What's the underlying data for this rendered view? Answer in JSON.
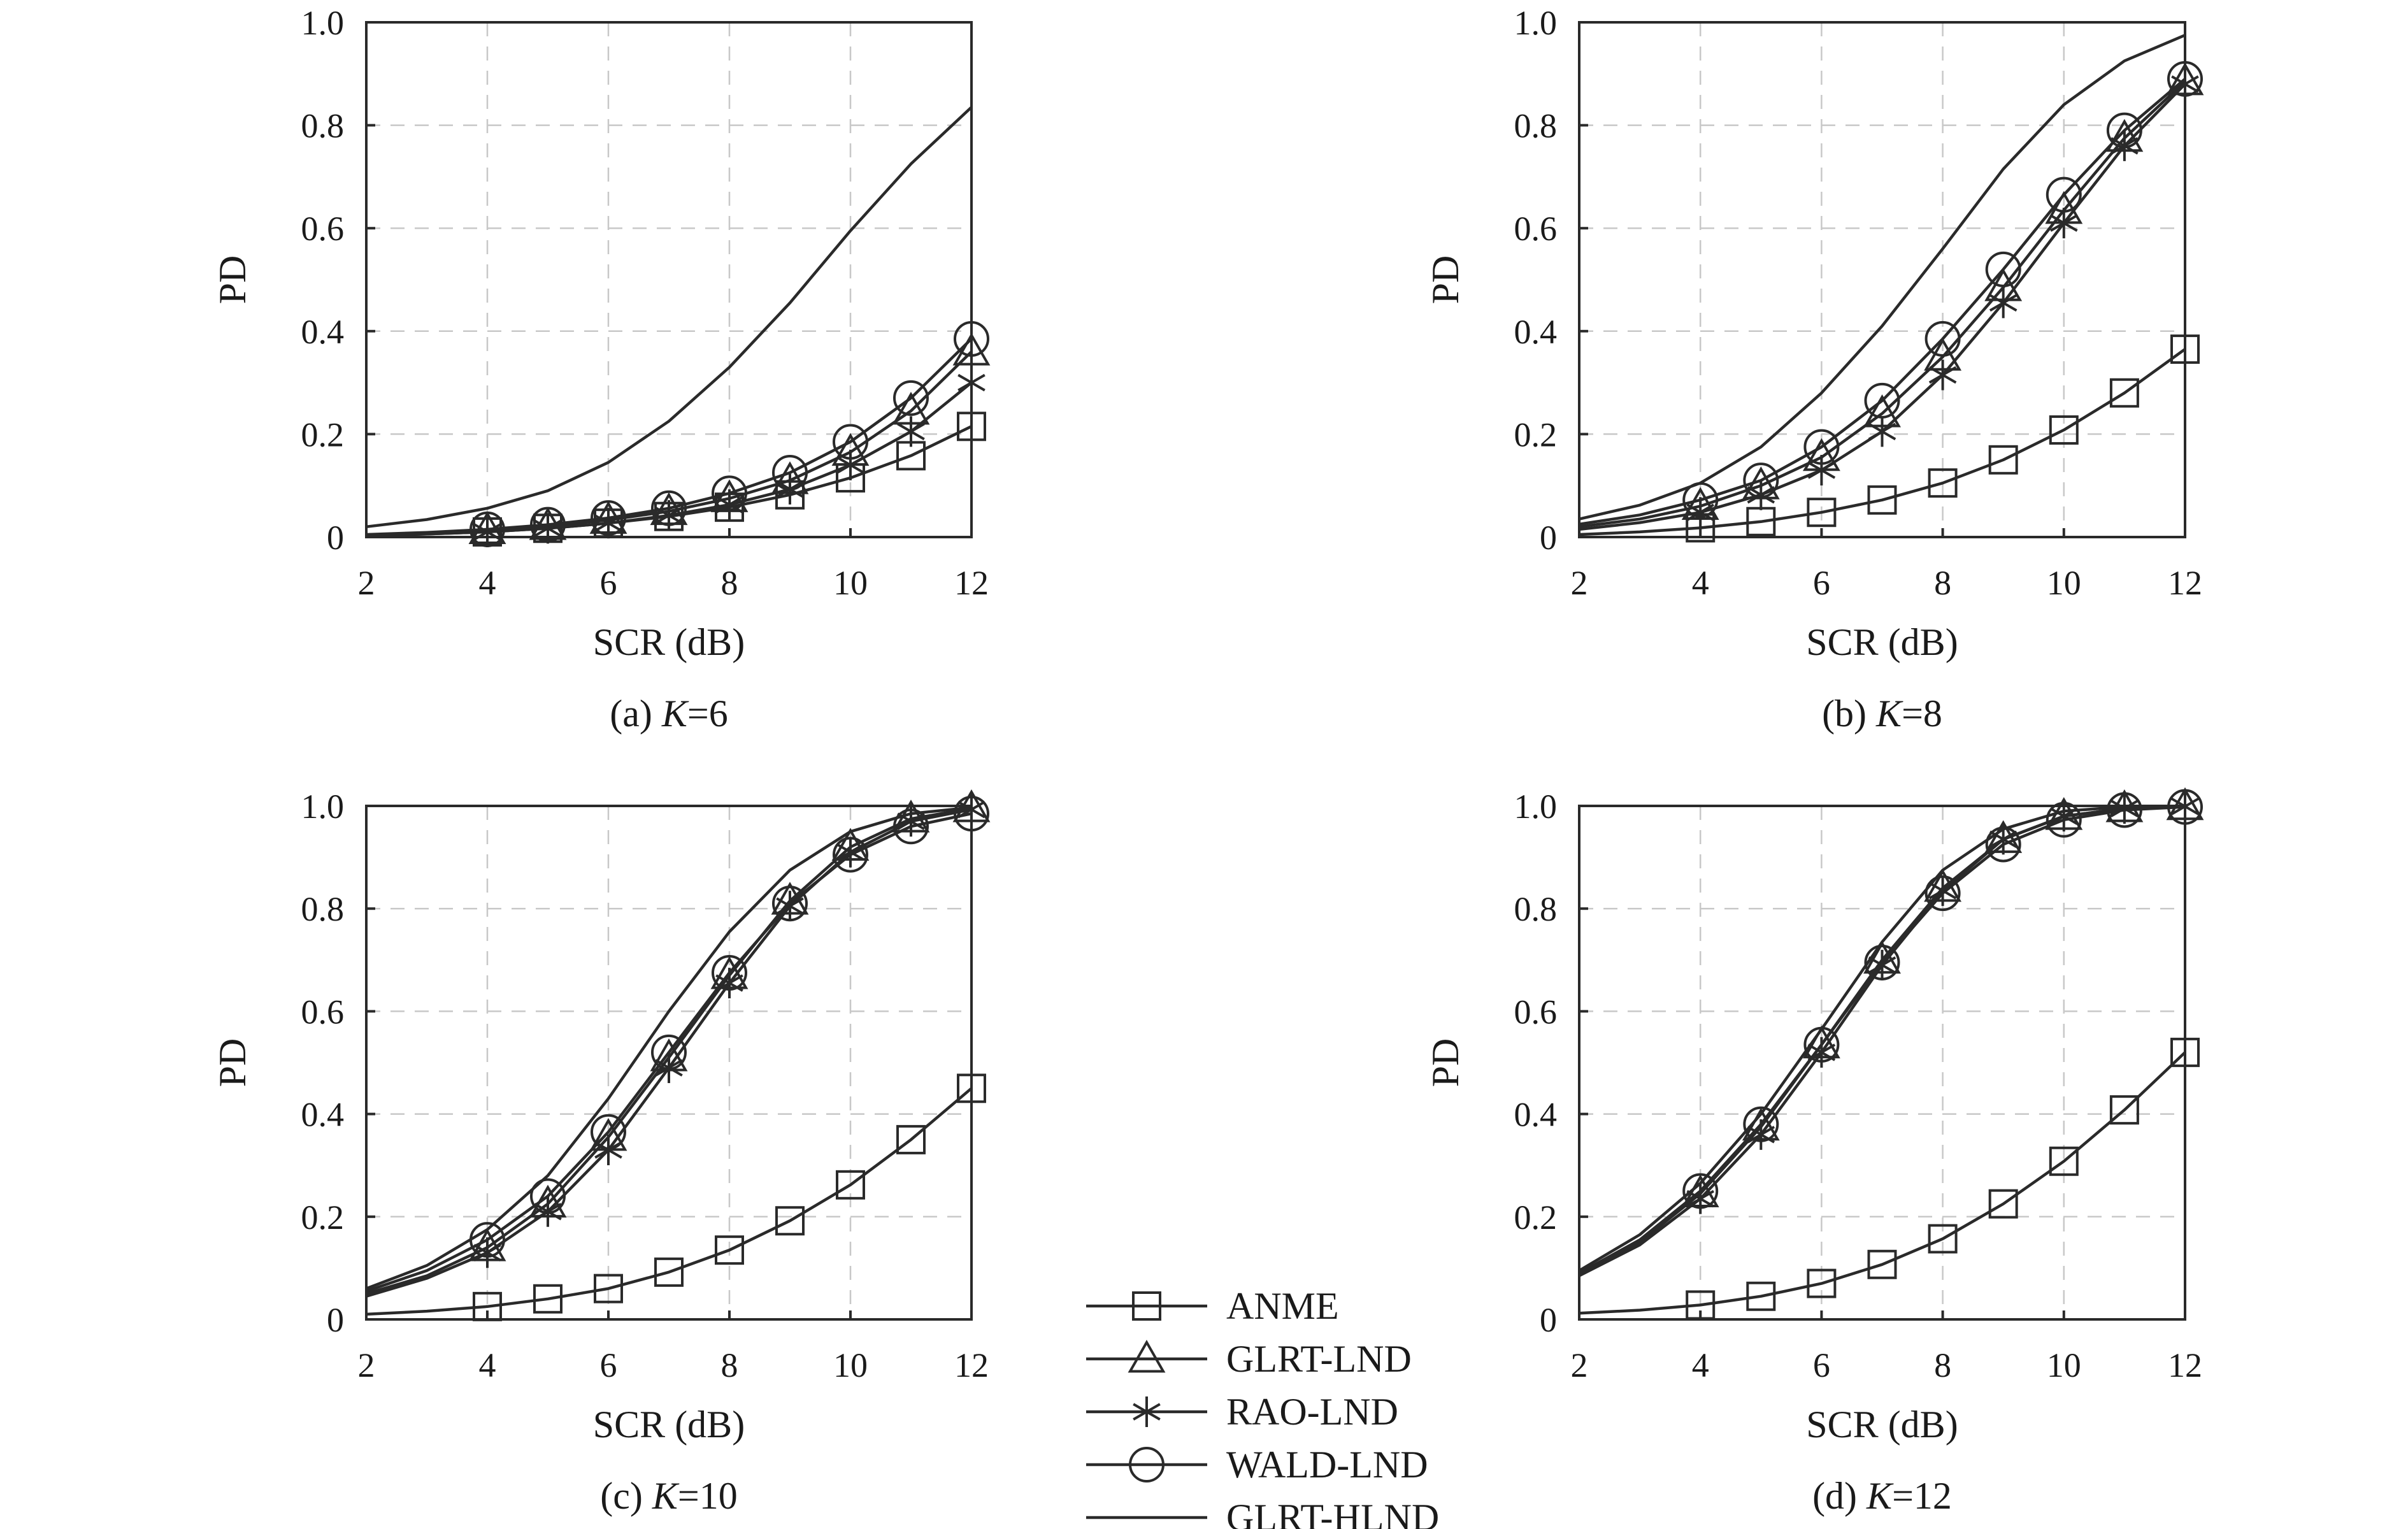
{
  "legend": {
    "entries": [
      {
        "label": "ANME",
        "marker": "square"
      },
      {
        "label": "GLRT-LND",
        "marker": "triangle"
      },
      {
        "label": "RAO-LND",
        "marker": "asterisk"
      },
      {
        "label": "WALD-LND",
        "marker": "circle"
      },
      {
        "label": "GLRT-HLND",
        "marker": "none"
      }
    ]
  },
  "chart_data": [
    {
      "type": "line",
      "caption_prefix": "(a) ",
      "caption_var": "K",
      "caption_value": "=6",
      "xlabel": "SCR (dB)",
      "ylabel": "PD",
      "xlim": [
        2,
        12
      ],
      "ylim": [
        0,
        1.0
      ],
      "xticks": [
        "2",
        "4",
        "6",
        "8",
        "10",
        "12"
      ],
      "yticks": [
        "0",
        "0.2",
        "0.4",
        "0.6",
        "0.8",
        "1.0"
      ],
      "grid": true,
      "x": [
        2,
        3,
        4,
        5,
        6,
        7,
        8,
        9,
        10,
        11,
        12
      ],
      "series": [
        {
          "name": "ANME",
          "marker": "square",
          "values": [
            0.003,
            0.006,
            0.01,
            0.017,
            0.027,
            0.04,
            0.058,
            0.082,
            0.115,
            0.158,
            0.215
          ]
        },
        {
          "name": "GLRT-LND",
          "marker": "triangle",
          "values": [
            0.004,
            0.008,
            0.013,
            0.021,
            0.033,
            0.05,
            0.075,
            0.11,
            0.165,
            0.245,
            0.36
          ]
        },
        {
          "name": "RAO-LND",
          "marker": "asterisk",
          "values": [
            0.003,
            0.006,
            0.01,
            0.017,
            0.027,
            0.042,
            0.063,
            0.093,
            0.14,
            0.205,
            0.3
          ]
        },
        {
          "name": "WALD-LND",
          "marker": "circle",
          "values": [
            0.005,
            0.009,
            0.015,
            0.024,
            0.037,
            0.056,
            0.085,
            0.125,
            0.185,
            0.27,
            0.385
          ]
        },
        {
          "name": "GLRT-HLND",
          "marker": "none",
          "values": [
            0.02,
            0.034,
            0.056,
            0.09,
            0.145,
            0.225,
            0.33,
            0.455,
            0.595,
            0.725,
            0.835
          ]
        }
      ]
    },
    {
      "type": "line",
      "caption_prefix": "(b) ",
      "caption_var": "K",
      "caption_value": "=8",
      "xlabel": "SCR (dB)",
      "ylabel": "PD",
      "xlim": [
        2,
        12
      ],
      "ylim": [
        0,
        1.0
      ],
      "xticks": [
        "2",
        "4",
        "6",
        "8",
        "10",
        "12"
      ],
      "yticks": [
        "0",
        "0.2",
        "0.4",
        "0.6",
        "0.8",
        "1.0"
      ],
      "grid": true,
      "x": [
        2,
        3,
        4,
        5,
        6,
        7,
        8,
        9,
        10,
        11,
        12
      ],
      "series": [
        {
          "name": "ANME",
          "marker": "square",
          "values": [
            0.005,
            0.01,
            0.018,
            0.03,
            0.048,
            0.072,
            0.105,
            0.15,
            0.208,
            0.28,
            0.365
          ]
        },
        {
          "name": "GLRT-LND",
          "marker": "triangle",
          "values": [
            0.02,
            0.035,
            0.06,
            0.1,
            0.155,
            0.24,
            0.35,
            0.485,
            0.635,
            0.775,
            0.885
          ]
        },
        {
          "name": "RAO-LND",
          "marker": "asterisk",
          "values": [
            0.015,
            0.028,
            0.048,
            0.082,
            0.13,
            0.205,
            0.315,
            0.455,
            0.61,
            0.76,
            0.88
          ]
        },
        {
          "name": "WALD-LND",
          "marker": "circle",
          "values": [
            0.025,
            0.043,
            0.072,
            0.11,
            0.175,
            0.265,
            0.385,
            0.52,
            0.665,
            0.79,
            0.89
          ]
        },
        {
          "name": "GLRT-HLND",
          "marker": "none",
          "values": [
            0.035,
            0.062,
            0.105,
            0.175,
            0.28,
            0.41,
            0.56,
            0.715,
            0.84,
            0.925,
            0.975
          ]
        }
      ]
    },
    {
      "type": "line",
      "caption_prefix": "(c) ",
      "caption_var": "K",
      "caption_value": "=10",
      "xlabel": "SCR (dB)",
      "ylabel": "PD",
      "xlim": [
        2,
        12
      ],
      "ylim": [
        0,
        1.0
      ],
      "xticks": [
        "2",
        "4",
        "6",
        "8",
        "10",
        "12"
      ],
      "yticks": [
        "0",
        "0.2",
        "0.4",
        "0.6",
        "0.8",
        "1.0"
      ],
      "grid": true,
      "x": [
        2,
        3,
        4,
        5,
        6,
        7,
        8,
        9,
        10,
        11,
        12
      ],
      "series": [
        {
          "name": "ANME",
          "marker": "square",
          "values": [
            0.01,
            0.016,
            0.025,
            0.04,
            0.06,
            0.092,
            0.135,
            0.192,
            0.262,
            0.35,
            0.45
          ]
        },
        {
          "name": "GLRT-LND",
          "marker": "triangle",
          "values": [
            0.05,
            0.085,
            0.14,
            0.225,
            0.355,
            0.51,
            0.67,
            0.815,
            0.92,
            0.975,
            0.995
          ]
        },
        {
          "name": "RAO-LND",
          "marker": "asterisk",
          "values": [
            0.045,
            0.08,
            0.13,
            0.21,
            0.33,
            0.49,
            0.655,
            0.805,
            0.91,
            0.97,
            0.993
          ]
        },
        {
          "name": "WALD-LND",
          "marker": "circle",
          "values": [
            0.055,
            0.095,
            0.155,
            0.24,
            0.365,
            0.52,
            0.675,
            0.81,
            0.905,
            0.96,
            0.985
          ]
        },
        {
          "name": "GLRT-HLND",
          "marker": "none",
          "values": [
            0.06,
            0.105,
            0.175,
            0.28,
            0.43,
            0.6,
            0.755,
            0.875,
            0.95,
            0.985,
            0.997
          ]
        }
      ]
    },
    {
      "type": "line",
      "caption_prefix": "(d) ",
      "caption_var": "K",
      "caption_value": "=12",
      "xlabel": "SCR (dB)",
      "ylabel": "PD",
      "xlim": [
        2,
        12
      ],
      "ylim": [
        0,
        1.0
      ],
      "xticks": [
        "2",
        "4",
        "6",
        "8",
        "10",
        "12"
      ],
      "yticks": [
        "0",
        "0.2",
        "0.4",
        "0.6",
        "0.8",
        "1.0"
      ],
      "grid": true,
      "x": [
        2,
        3,
        4,
        5,
        6,
        7,
        8,
        9,
        10,
        11,
        12
      ],
      "series": [
        {
          "name": "ANME",
          "marker": "square",
          "values": [
            0.012,
            0.018,
            0.028,
            0.045,
            0.07,
            0.107,
            0.157,
            0.225,
            0.308,
            0.408,
            0.52
          ]
        },
        {
          "name": "GLRT-LND",
          "marker": "triangle",
          "values": [
            0.09,
            0.15,
            0.245,
            0.375,
            0.535,
            0.7,
            0.84,
            0.935,
            0.98,
            0.995,
            0.999
          ]
        },
        {
          "name": "RAO-LND",
          "marker": "asterisk",
          "values": [
            0.085,
            0.145,
            0.235,
            0.36,
            0.52,
            0.69,
            0.835,
            0.935,
            0.98,
            0.995,
            0.999
          ]
        },
        {
          "name": "WALD-LND",
          "marker": "circle",
          "values": [
            0.09,
            0.155,
            0.25,
            0.38,
            0.535,
            0.695,
            0.83,
            0.925,
            0.973,
            0.992,
            0.998
          ]
        },
        {
          "name": "GLRT-HLND",
          "marker": "none",
          "values": [
            0.095,
            0.165,
            0.265,
            0.4,
            0.565,
            0.735,
            0.875,
            0.955,
            0.99,
            0.998,
            1.0
          ]
        }
      ]
    }
  ]
}
